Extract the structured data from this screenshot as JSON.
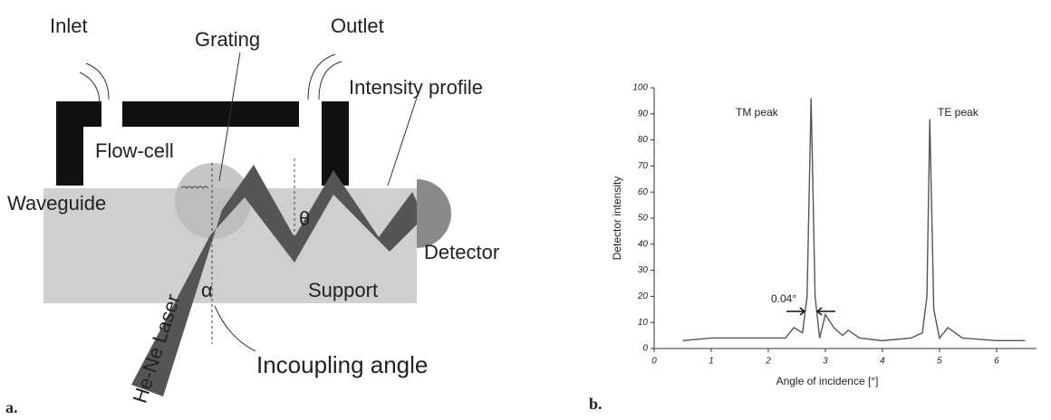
{
  "panel_labels": [
    "a.",
    "b."
  ],
  "diagram": {
    "inlet": "Inlet",
    "outlet": "Outlet",
    "grating": "Grating",
    "intensity_profile": "Intensity profile",
    "flow_cell": "Flow-cell",
    "waveguide": "Waveguide",
    "detector": "Detector",
    "support": "Support",
    "laser": "He-Ne Laser",
    "alpha": "α",
    "theta": "θ",
    "incoupling_angle": "Incoupling angle"
  },
  "chart_data": {
    "type": "line",
    "x_label": "Angle of incidence [°]",
    "y_label": "Detector intensity",
    "xlim": [
      0,
      6.7
    ],
    "xticks": [
      0,
      1,
      2,
      3,
      4,
      5,
      6
    ],
    "ylim": [
      0,
      100
    ],
    "yticks": [
      0,
      10,
      20,
      30,
      40,
      50,
      60,
      70,
      80,
      90,
      100
    ],
    "annotations": [
      "TM peak",
      "TE peak",
      "0.04°"
    ],
    "series": [
      {
        "name": "Detector intensity",
        "color": "#555",
        "x": [
          0.5,
          1.0,
          1.5,
          2.0,
          2.3,
          2.45,
          2.6,
          2.68,
          2.75,
          2.82,
          2.9,
          3.0,
          3.15,
          3.3,
          3.4,
          3.6,
          4.0,
          4.5,
          4.7,
          4.78,
          4.83,
          4.9,
          5.0,
          5.15,
          5.4,
          6.0,
          6.5
        ],
        "values": [
          3,
          4,
          4,
          4,
          4,
          8,
          6,
          20,
          96,
          20,
          4,
          13,
          8,
          5,
          7,
          4,
          3,
          4,
          6,
          20,
          88,
          15,
          4,
          8,
          4,
          3,
          3
        ]
      }
    ]
  }
}
